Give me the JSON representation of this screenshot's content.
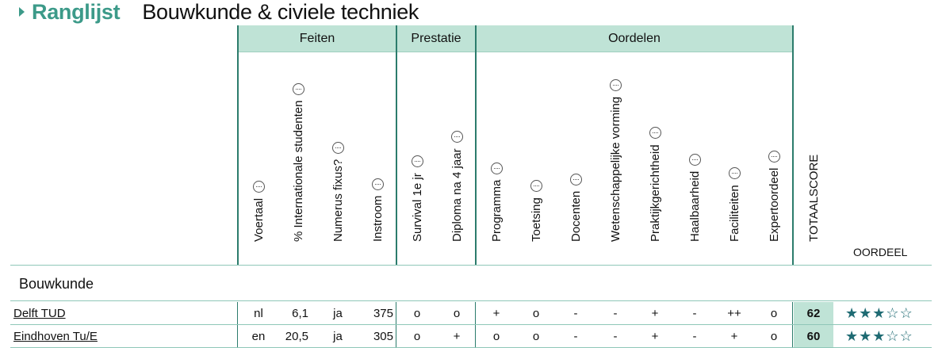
{
  "header": {
    "breadcrumb": "Ranglijst",
    "title": "Bouwkunde & civiele techniek"
  },
  "groups": [
    {
      "label": "Feiten"
    },
    {
      "label": "Prestatie"
    },
    {
      "label": "Oordelen"
    }
  ],
  "columns": [
    {
      "label": "Voertaal",
      "icon": "info-icon"
    },
    {
      "label": "% Internationale studenten",
      "icon": "info-icon"
    },
    {
      "label": "Numerus fixus?",
      "icon": "info-icon"
    },
    {
      "label": "Instroom",
      "icon": "info-icon"
    },
    {
      "label": "Survival 1e jr",
      "icon": "info-icon"
    },
    {
      "label": "Diploma na 4 jaar",
      "icon": "info-icon"
    },
    {
      "label": "Programma",
      "icon": "info-icon"
    },
    {
      "label": "Toetsing",
      "icon": "info-icon"
    },
    {
      "label": "Docenten",
      "icon": "info-icon"
    },
    {
      "label": "Wetenschappelijke vorming",
      "icon": "info-icon"
    },
    {
      "label": "Praktijkgerichtheid",
      "icon": "info-icon"
    },
    {
      "label": "Haalbaarheid",
      "icon": "info-icon"
    },
    {
      "label": "Faciliteiten",
      "icon": "info-icon"
    },
    {
      "label": "Expertoordeel",
      "icon": "info-icon"
    },
    {
      "label": "TOTAALSCORE"
    }
  ],
  "oordeel_header": "OORDEEL",
  "section": "Bouwkunde",
  "rows": [
    {
      "institution": "Delft TUD",
      "cells": [
        "nl",
        "6,1",
        "ja",
        "375",
        "o",
        "o",
        "+",
        "o",
        "-",
        "-",
        "+",
        "-",
        "++",
        "o"
      ],
      "score": "62",
      "stars": 3,
      "stars_max": 5
    },
    {
      "institution": "Eindhoven Tu/E",
      "cells": [
        "en",
        "20,5",
        "ja",
        "305",
        "o",
        "+",
        "o",
        "o",
        "-",
        "-",
        "+",
        "-",
        "+",
        "o"
      ],
      "score": "60",
      "stars": 3,
      "stars_max": 5
    }
  ],
  "colors": {
    "accent": "#3c9a89",
    "header_fill": "#bfe3d6",
    "divider": "#2c7c6c",
    "star": "#1f6b73"
  }
}
